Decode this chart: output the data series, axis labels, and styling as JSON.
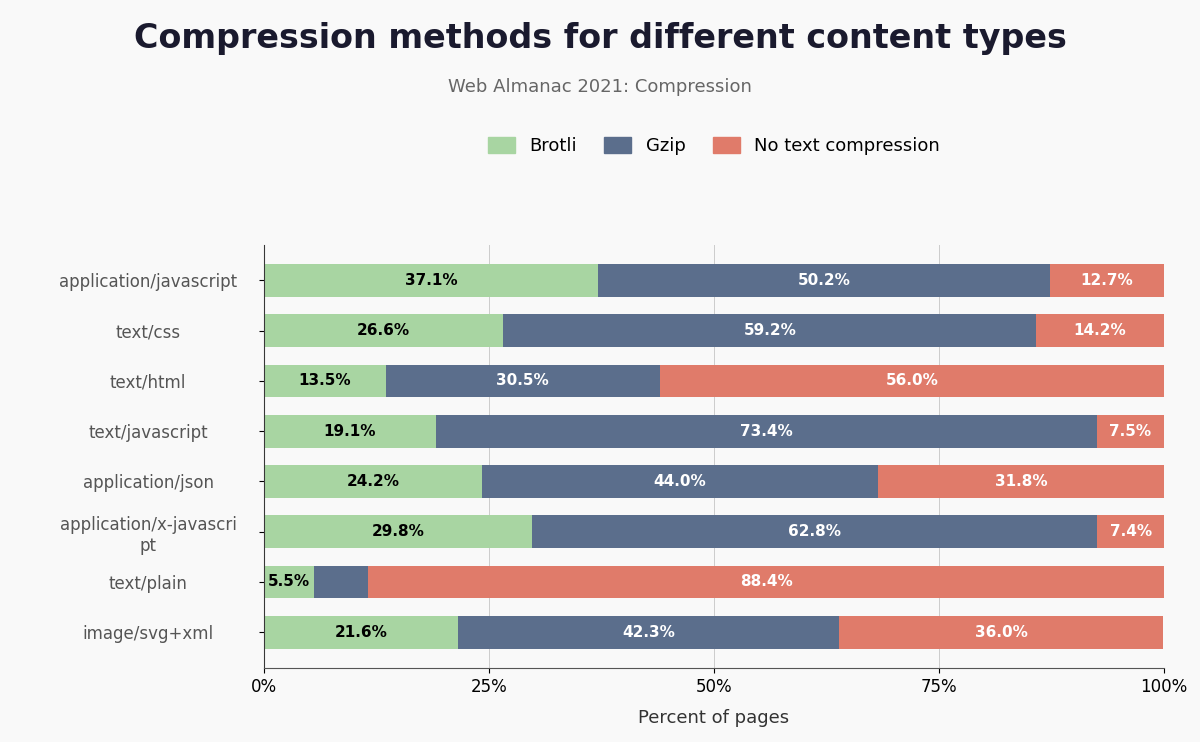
{
  "title": "Compression methods for different content types",
  "subtitle": "Web Almanac 2021: Compression",
  "xlabel": "Percent of pages",
  "categories": [
    "application/javascript",
    "text/css",
    "text/html",
    "text/javascript",
    "application/json",
    "application/x-javascri\npt",
    "text/plain",
    "image/svg+xml"
  ],
  "brotli": [
    37.1,
    26.6,
    13.5,
    19.1,
    24.2,
    29.8,
    5.5,
    21.6
  ],
  "gzip": [
    50.2,
    59.2,
    30.5,
    73.4,
    44.0,
    62.8,
    6.1,
    42.3
  ],
  "no_comp": [
    12.7,
    14.2,
    56.0,
    7.5,
    31.8,
    7.4,
    88.4,
    36.0
  ],
  "brotli_labels": [
    "37.1%",
    "26.6%",
    "13.5%",
    "19.1%",
    "24.2%",
    "29.8%",
    "5.5%",
    "21.6%"
  ],
  "gzip_labels": [
    "50.2%",
    "59.2%",
    "30.5%",
    "73.4%",
    "44.0%",
    "62.8%",
    "",
    "42.3%"
  ],
  "no_comp_labels": [
    "12.7%",
    "14.2%",
    "56.0%",
    "7.5%",
    "31.8%",
    "7.4%",
    "88.4%",
    "36.0%"
  ],
  "color_brotli": "#a8d5a2",
  "color_gzip": "#5b6e8c",
  "color_nocomp": "#e07b6a",
  "bg_color": "#f9f9f9",
  "title_fontsize": 24,
  "subtitle_fontsize": 13,
  "tick_fontsize": 12,
  "label_fontsize": 11,
  "legend_fontsize": 13
}
